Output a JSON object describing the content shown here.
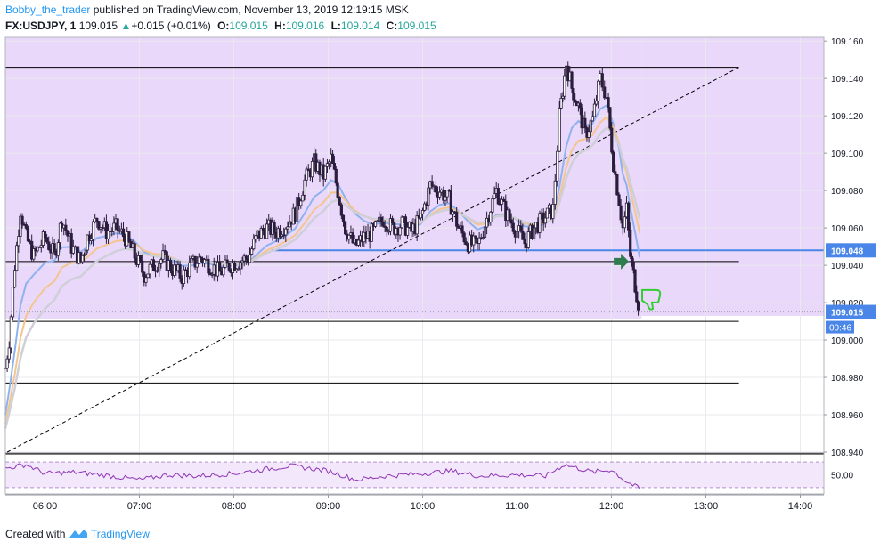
{
  "header": {
    "author": "Bobby_the_trader",
    "published_text": " published on TradingView.com, November 13, 2019 12:19:15 MSK",
    "symbol": "FX:USDJPY, 1",
    "last": "109.015",
    "change": "+0.015 (+0.01%)",
    "o_label": "O:",
    "o_value": "109.015",
    "h_label": "H:",
    "h_value": "109.016",
    "l_label": "L:",
    "l_value": "109.014",
    "c_label": "C:",
    "c_value": "109.015"
  },
  "footer": {
    "created_with": "Created with",
    "brand": "TradingView"
  },
  "colors": {
    "zone": "#ead8fb",
    "candle": "#2b1d3d",
    "ema_fast": "#8fb2ef",
    "ema_mid": "#f3c58f",
    "ema_slow": "#cfcfd8",
    "blue_line": "#4a86e8",
    "price_label": "#4a86e8",
    "rsi": "#8e35b5",
    "arrow": "#2e7d4f",
    "thumb": "#33cc33"
  },
  "icons": {
    "arrow": "arrow-right-icon",
    "thumb": "thumbs-down-icon"
  },
  "chart_data": {
    "type": "candlestick",
    "symbol": "FX:USDJPY",
    "interval": "1",
    "ylim": [
      108.94,
      109.162
    ],
    "y_ticks": [
      "108.940",
      "108.960",
      "108.980",
      "109.000",
      "109.020",
      "109.040",
      "109.060",
      "109.080",
      "109.100",
      "109.120",
      "109.140",
      "109.160"
    ],
    "x_ticks": [
      {
        "t": 6.0,
        "label": "06:00"
      },
      {
        "t": 7.0,
        "label": "07:00"
      },
      {
        "t": 8.0,
        "label": "08:00"
      },
      {
        "t": 9.0,
        "label": "09:00"
      },
      {
        "t": 10.0,
        "label": "10:00"
      },
      {
        "t": 11.0,
        "label": "11:00"
      },
      {
        "t": 12.0,
        "label": "12:00"
      },
      {
        "t": 13.0,
        "label": "13:00"
      },
      {
        "t": 14.0,
        "label": "14:00"
      }
    ],
    "price_line": {
      "value": 109.048,
      "label": "109.048"
    },
    "last_price": {
      "value": 109.015,
      "label": "109.015"
    },
    "countdown": "00:46",
    "horizontal_lines": [
      109.146,
      109.042,
      109.01,
      108.977
    ],
    "trendline": {
      "from": {
        "t": 5.6,
        "y": 108.94
      },
      "to": {
        "t": 13.35,
        "y": 109.146
      }
    },
    "zone": {
      "from": 109.011,
      "to": 109.162
    },
    "close_series": [
      {
        "t": 5.58,
        "y": 108.985
      },
      {
        "t": 5.62,
        "y": 109.0
      },
      {
        "t": 5.68,
        "y": 109.04
      },
      {
        "t": 5.74,
        "y": 109.07
      },
      {
        "t": 5.8,
        "y": 109.055
      },
      {
        "t": 5.88,
        "y": 109.045
      },
      {
        "t": 6.0,
        "y": 109.055
      },
      {
        "t": 6.1,
        "y": 109.045
      },
      {
        "t": 6.18,
        "y": 109.065
      },
      {
        "t": 6.28,
        "y": 109.05
      },
      {
        "t": 6.38,
        "y": 109.042
      },
      {
        "t": 6.45,
        "y": 109.055
      },
      {
        "t": 6.55,
        "y": 109.065
      },
      {
        "t": 6.65,
        "y": 109.058
      },
      {
        "t": 6.75,
        "y": 109.06
      },
      {
        "t": 6.85,
        "y": 109.055
      },
      {
        "t": 6.95,
        "y": 109.045
      },
      {
        "t": 7.05,
        "y": 109.035
      },
      {
        "t": 7.15,
        "y": 109.04
      },
      {
        "t": 7.25,
        "y": 109.044
      },
      {
        "t": 7.35,
        "y": 109.038
      },
      {
        "t": 7.45,
        "y": 109.034
      },
      {
        "t": 7.55,
        "y": 109.04
      },
      {
        "t": 7.65,
        "y": 109.044
      },
      {
        "t": 7.75,
        "y": 109.04
      },
      {
        "t": 7.85,
        "y": 109.036
      },
      {
        "t": 7.95,
        "y": 109.04
      },
      {
        "t": 8.05,
        "y": 109.042
      },
      {
        "t": 8.15,
        "y": 109.044
      },
      {
        "t": 8.25,
        "y": 109.056
      },
      {
        "t": 8.35,
        "y": 109.06
      },
      {
        "t": 8.45,
        "y": 109.058
      },
      {
        "t": 8.55,
        "y": 109.062
      },
      {
        "t": 8.65,
        "y": 109.068
      },
      {
        "t": 8.75,
        "y": 109.085
      },
      {
        "t": 8.85,
        "y": 109.095
      },
      {
        "t": 8.95,
        "y": 109.088
      },
      {
        "t": 9.03,
        "y": 109.097
      },
      {
        "t": 9.1,
        "y": 109.08
      },
      {
        "t": 9.18,
        "y": 109.06
      },
      {
        "t": 9.28,
        "y": 109.05
      },
      {
        "t": 9.38,
        "y": 109.055
      },
      {
        "t": 9.48,
        "y": 109.058
      },
      {
        "t": 9.58,
        "y": 109.065
      },
      {
        "t": 9.68,
        "y": 109.06
      },
      {
        "t": 9.78,
        "y": 109.062
      },
      {
        "t": 9.88,
        "y": 109.058
      },
      {
        "t": 9.98,
        "y": 109.065
      },
      {
        "t": 10.08,
        "y": 109.083
      },
      {
        "t": 10.18,
        "y": 109.08
      },
      {
        "t": 10.28,
        "y": 109.075
      },
      {
        "t": 10.38,
        "y": 109.06
      },
      {
        "t": 10.48,
        "y": 109.052
      },
      {
        "t": 10.58,
        "y": 109.05
      },
      {
        "t": 10.68,
        "y": 109.065
      },
      {
        "t": 10.78,
        "y": 109.08
      },
      {
        "t": 10.88,
        "y": 109.068
      },
      {
        "t": 10.98,
        "y": 109.06
      },
      {
        "t": 11.08,
        "y": 109.052
      },
      {
        "t": 11.18,
        "y": 109.06
      },
      {
        "t": 11.28,
        "y": 109.065
      },
      {
        "t": 11.38,
        "y": 109.07
      },
      {
        "t": 11.45,
        "y": 109.12
      },
      {
        "t": 11.52,
        "y": 109.148
      },
      {
        "t": 11.58,
        "y": 109.135
      },
      {
        "t": 11.65,
        "y": 109.125
      },
      {
        "t": 11.72,
        "y": 109.11
      },
      {
        "t": 11.8,
        "y": 109.118
      },
      {
        "t": 11.88,
        "y": 109.14
      },
      {
        "t": 11.95,
        "y": 109.13
      },
      {
        "t": 12.02,
        "y": 109.095
      },
      {
        "t": 12.08,
        "y": 109.075
      },
      {
        "t": 12.12,
        "y": 109.06
      },
      {
        "t": 12.16,
        "y": 109.07
      },
      {
        "t": 12.2,
        "y": 109.045
      },
      {
        "t": 12.25,
        "y": 109.03
      },
      {
        "t": 12.3,
        "y": 109.015
      }
    ],
    "rsi": {
      "ticks": [
        "50.00"
      ],
      "ylim": [
        20,
        80
      ],
      "bands": [
        70,
        30
      ],
      "values": [
        {
          "t": 5.58,
          "y": 60
        },
        {
          "t": 5.8,
          "y": 66
        },
        {
          "t": 6.0,
          "y": 52
        },
        {
          "t": 6.3,
          "y": 54
        },
        {
          "t": 6.6,
          "y": 50
        },
        {
          "t": 7.0,
          "y": 42
        },
        {
          "t": 7.3,
          "y": 50
        },
        {
          "t": 7.6,
          "y": 48
        },
        {
          "t": 8.0,
          "y": 52
        },
        {
          "t": 8.3,
          "y": 58
        },
        {
          "t": 8.6,
          "y": 64
        },
        {
          "t": 9.0,
          "y": 56
        },
        {
          "t": 9.3,
          "y": 42
        },
        {
          "t": 9.6,
          "y": 48
        },
        {
          "t": 10.0,
          "y": 52
        },
        {
          "t": 10.3,
          "y": 56
        },
        {
          "t": 10.6,
          "y": 48
        },
        {
          "t": 11.0,
          "y": 50
        },
        {
          "t": 11.3,
          "y": 48
        },
        {
          "t": 11.5,
          "y": 66
        },
        {
          "t": 11.8,
          "y": 54
        },
        {
          "t": 12.0,
          "y": 58
        },
        {
          "t": 12.15,
          "y": 40
        },
        {
          "t": 12.3,
          "y": 28
        }
      ]
    }
  }
}
